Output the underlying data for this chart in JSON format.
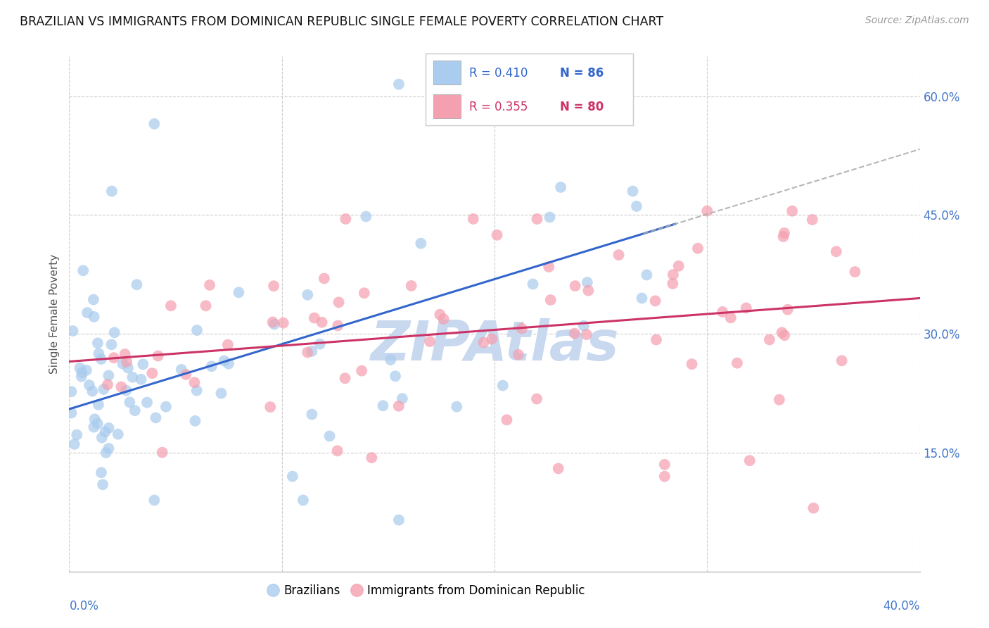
{
  "title": "BRAZILIAN VS IMMIGRANTS FROM DOMINICAN REPUBLIC SINGLE FEMALE POVERTY CORRELATION CHART",
  "source": "Source: ZipAtlas.com",
  "ylabel": "Single Female Poverty",
  "ytick_vals": [
    0.15,
    0.3,
    0.45,
    0.6
  ],
  "ytick_labels": [
    "15.0%",
    "30.0%",
    "45.0%",
    "60.0%"
  ],
  "xlim": [
    0.0,
    0.4
  ],
  "ylim": [
    0.0,
    0.65
  ],
  "legend_r1": "R = 0.410",
  "legend_n1": "N = 86",
  "legend_r2": "R = 0.355",
  "legend_n2": "N = 80",
  "color_blue": "#aaccee",
  "color_pink": "#f4a0b0",
  "line_blue": "#3366cc",
  "line_pink": "#cc3366",
  "dash_color": "#aaaaaa",
  "watermark": "ZIPAtlas",
  "watermark_color": "#c8d8ee",
  "legend_label1": "Brazilians",
  "legend_label2": "Immigrants from Dominican Republic",
  "r1": 0.41,
  "n1": 86,
  "r2": 0.355,
  "n2": 80,
  "seed": 7,
  "blue_intercept": 0.205,
  "blue_slope": 0.82,
  "pink_intercept": 0.265,
  "pink_slope": 0.2
}
